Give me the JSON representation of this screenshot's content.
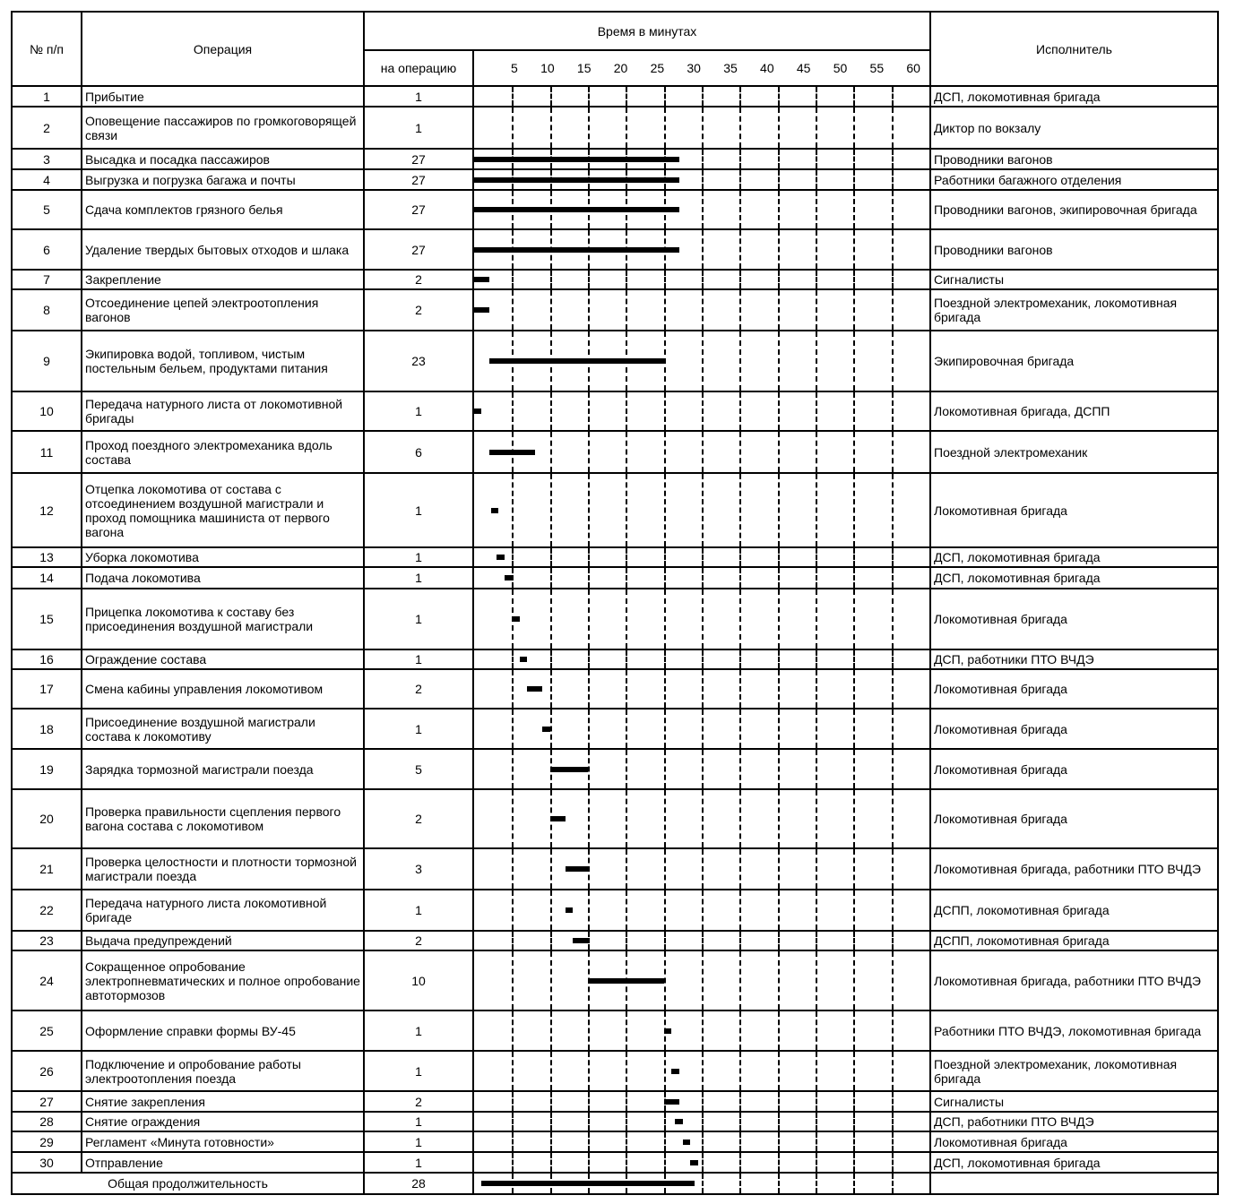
{
  "header": {
    "num": "№ п/п",
    "operation": "Операция",
    "time": "Время в минутах",
    "per_operation": "на операцию",
    "ticks": [
      "5",
      "10",
      "15",
      "20",
      "25",
      "30",
      "35",
      "40",
      "45",
      "50",
      "55",
      "60"
    ],
    "executor": "Исполнитель"
  },
  "chart_data": {
    "type": "gantt",
    "x_unit": "minutes",
    "xlim": [
      0,
      60
    ],
    "grid": true
  },
  "rows": [
    {
      "n": "1",
      "op": "Прибытие",
      "dur": "1",
      "start": null,
      "who": "ДСП, локомотивная бригада"
    },
    {
      "n": "2",
      "op": "Оповещение пассажиров по громкоговорящей связи",
      "dur": "1",
      "start": null,
      "who": "Диктор по вокзалу"
    },
    {
      "n": "3",
      "op": "Высадка и посадка пассажиров",
      "dur": "27",
      "start": 0,
      "who": "Проводники вагонов"
    },
    {
      "n": "4",
      "op": "Выгрузка и погрузка багажа и почты",
      "dur": "27",
      "start": 0,
      "who": "Работники багажного отделения"
    },
    {
      "n": "5",
      "op": "Сдача комплектов грязного белья",
      "dur": "27",
      "start": 0,
      "who": "Проводники вагонов, экипировочная бригада"
    },
    {
      "n": "6",
      "op": "Удаление твердых бытовых отходов и шлака",
      "dur": "27",
      "start": 0,
      "who": "Проводники вагонов"
    },
    {
      "n": "7",
      "op": "Закрепление",
      "dur": "2",
      "start": 0,
      "who": "Сигналисты"
    },
    {
      "n": "8",
      "op": "Отсоединение цепей электроотопления вагонов",
      "dur": "2",
      "start": 0,
      "who": "Поездной электромеханик, локомотивная бригада"
    },
    {
      "n": "9",
      "op": "Экипировка водой, топливом, чистым постельным бельем, продуктами питания",
      "dur": "23",
      "start": 2,
      "who": "Экипировочная бригада"
    },
    {
      "n": "10",
      "op": "Передача натурного листа от локомотивной бригады",
      "dur": "1",
      "start": 0,
      "who": "Локомотивная бригада, ДСПП"
    },
    {
      "n": "11",
      "op": "Проход поездного электромеханика вдоль состава",
      "dur": "6",
      "start": 2,
      "who": "Поездной электромеханик"
    },
    {
      "n": "12",
      "op": "Отцепка локомотива от состава с отсоединением воздушной магистрали и проход помощника машиниста от первого вагона",
      "dur": "1",
      "start": 2.2,
      "who": "Локомотивная бригада"
    },
    {
      "n": "13",
      "op": "Уборка локомотива",
      "dur": "1",
      "start": 3,
      "who": "ДСП, локомотивная бригада"
    },
    {
      "n": "14",
      "op": "Подача локомотива",
      "dur": "1",
      "start": 4,
      "who": "ДСП, локомотивная бригада"
    },
    {
      "n": "15",
      "op": "Прицепка локомотива к составу без присоединения воздушной магистрали",
      "dur": "1",
      "start": 5,
      "who": "Локомотивная бригада"
    },
    {
      "n": "16",
      "op": "Ограждение состава",
      "dur": "1",
      "start": 6,
      "who": "ДСП, работники ПТО ВЧДЭ"
    },
    {
      "n": "17",
      "op": "Смена кабины управления локомотивом",
      "dur": "2",
      "start": 7,
      "who": "Локомотивная бригада"
    },
    {
      "n": "18",
      "op": "Присоединение воздушной магистрали состава к локомотиву",
      "dur": "1",
      "start": 9,
      "who": "Локомотивная бригада"
    },
    {
      "n": "19",
      "op": "Зарядка тормозной магистрали поезда",
      "dur": "5",
      "start": 10,
      "who": "Локомотивная бригада"
    },
    {
      "n": "20",
      "op": "Проверка правильности сцепления первого вагона состава с локомотивом",
      "dur": "2",
      "start": 10,
      "who": "Локомотивная бригада"
    },
    {
      "n": "21",
      "op": "Проверка целостности и плотности тормозной магистрали поезда",
      "dur": "3",
      "start": 12,
      "who": "Локомотивная бригада, работники ПТО ВЧДЭ"
    },
    {
      "n": "22",
      "op": "Передача натурного листа локомотивной бригаде",
      "dur": "1",
      "start": 12,
      "who": "ДСПП, локомотивная бригада"
    },
    {
      "n": "23",
      "op": "Выдача предупреждений",
      "dur": "2",
      "start": 13,
      "who": "ДСПП, локомотивная бригада"
    },
    {
      "n": "24",
      "op": "Сокращенное опробование электропневматических и полное опробование автотормозов",
      "dur": "10",
      "start": 15,
      "who": "Локомотивная бригада, работники ПТО ВЧДЭ"
    },
    {
      "n": "25",
      "op": "Оформление справки формы ВУ-45",
      "dur": "1",
      "start": 25,
      "who": "Работники ПТО ВЧДЭ, локомотивная бригада"
    },
    {
      "n": "26",
      "op": "Подключение и опробование работы электроотопления поезда",
      "dur": "1",
      "start": 26,
      "who": "Поездной электромеханик, локомотивная бригада"
    },
    {
      "n": "27",
      "op": "Снятие закрепления",
      "dur": "2",
      "start": 25,
      "who": "Сигналисты"
    },
    {
      "n": "28",
      "op": "Снятие ограждения",
      "dur": "1",
      "start": 26.5,
      "who": "ДСП, работники ПТО ВЧДЭ"
    },
    {
      "n": "29",
      "op": "Регламент «Минута готовности»",
      "dur": "1",
      "start": 27.5,
      "who": "Локомотивная бригада"
    },
    {
      "n": "30",
      "op": "Отправление",
      "dur": "1",
      "start": 28.5,
      "who": "ДСП, локомотивная бригада"
    }
  ],
  "total": {
    "label": "Общая продолжительность",
    "dur": "28",
    "start": 1
  }
}
